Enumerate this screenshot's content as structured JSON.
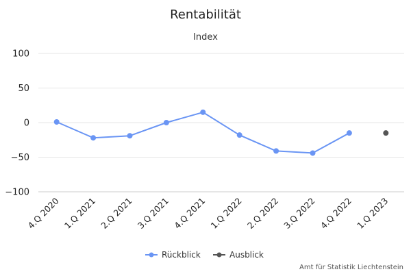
{
  "chart_data": {
    "type": "line",
    "title": "Rentabilität",
    "subtitle": "Index",
    "categories": [
      "4.Q 2020",
      "1.Q 2021",
      "2.Q 2021",
      "3.Q 2021",
      "4.Q 2021",
      "1.Q 2022",
      "2.Q 2022",
      "3.Q 2022",
      "4.Q 2022",
      "1.Q 2023"
    ],
    "yticks": [
      100,
      50,
      0,
      -50,
      -100
    ],
    "ylim": [
      -100,
      100
    ],
    "grid": true,
    "legend_position": "bottom-center",
    "series": [
      {
        "name": "Rückblick",
        "color": "#6a95f4",
        "values": [
          1,
          -22,
          -19,
          0,
          15,
          -18,
          -41,
          -44,
          -15,
          null
        ]
      },
      {
        "name": "Ausblick",
        "color": "#555555",
        "values": [
          null,
          null,
          null,
          null,
          null,
          null,
          null,
          null,
          null,
          -15
        ]
      }
    ],
    "credits": "Amt für Statistik Liechtenstein"
  }
}
